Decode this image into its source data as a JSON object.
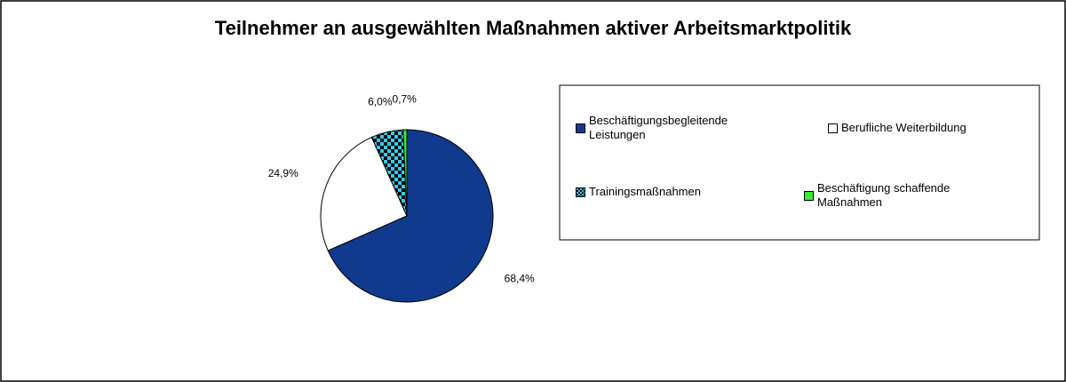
{
  "chart_data": {
    "type": "pie",
    "title": "Teilnehmer an ausgewählten Maßnahmen aktiver Arbeitsmarktpolitik",
    "categories": [
      "Beschäftigungsbegleitende Leistungen",
      "Berufliche Weiterbildung",
      "Trainingsmaßnahmen",
      "Beschäftigung schaffende Maßnahmen"
    ],
    "values": [
      68.4,
      24.9,
      6.0,
      0.7
    ],
    "value_labels": [
      "68,4%",
      "24,9%",
      "6,0%",
      "0,7%"
    ],
    "colors": [
      "#103a8e",
      "#ffffff",
      "#33ccee",
      "#33ee33"
    ],
    "checkered": [
      false,
      false,
      true,
      false
    ]
  }
}
